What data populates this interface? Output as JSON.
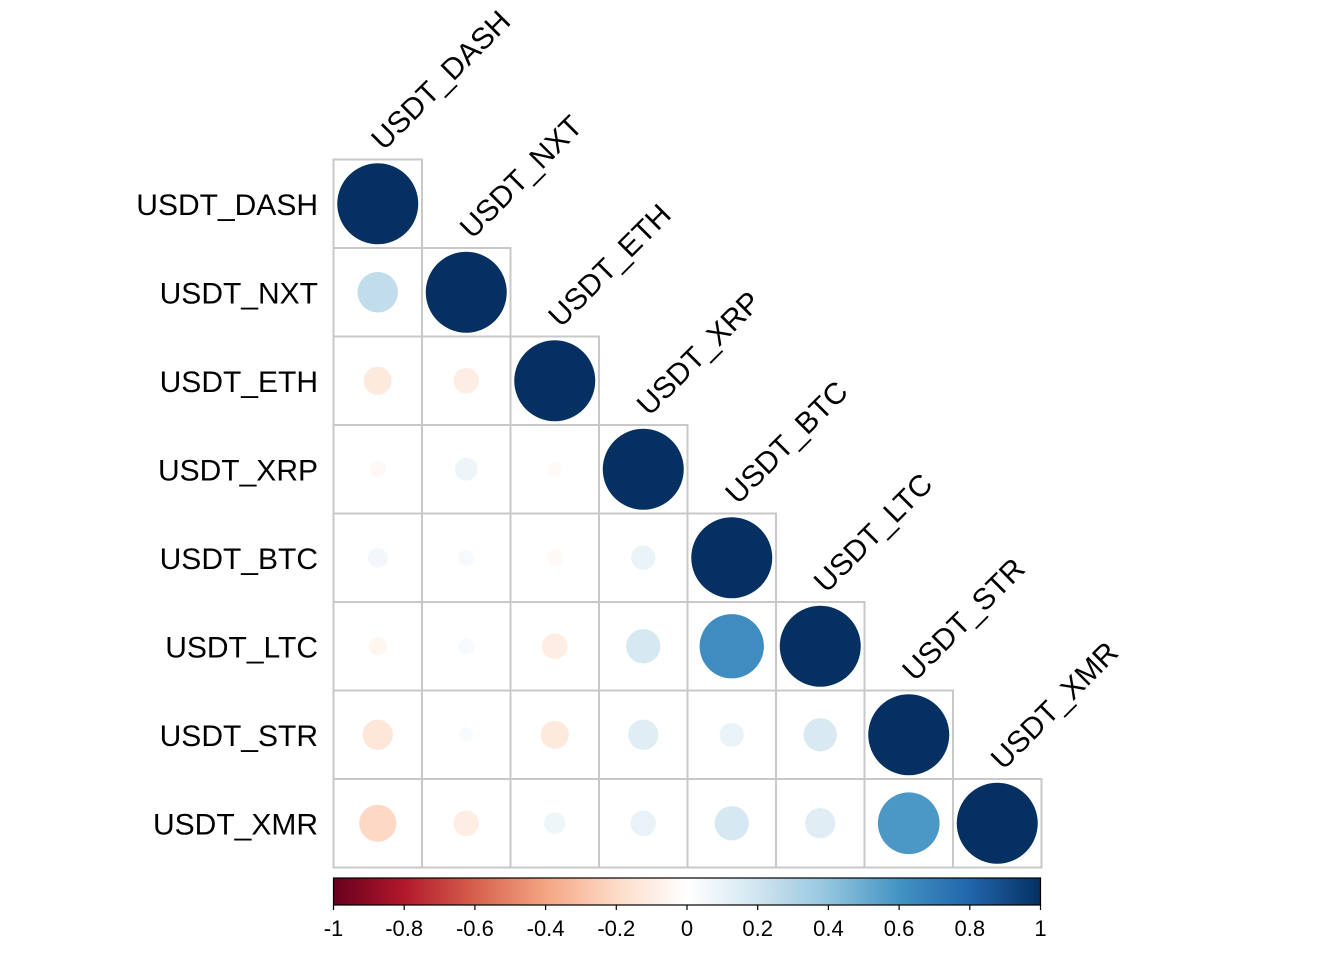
{
  "chart_data": {
    "type": "heatmap",
    "subtype": "correlation-matrix-circles-lower-triangle",
    "variables": [
      "USDT_DASH",
      "USDT_NXT",
      "USDT_ETH",
      "USDT_XRP",
      "USDT_BTC",
      "USDT_LTC",
      "USDT_STR",
      "USDT_XMR"
    ],
    "matrix": [
      [
        1.0,
        0.25,
        -0.12,
        -0.04,
        0.06,
        -0.05,
        -0.14,
        -0.21
      ],
      [
        0.25,
        1.0,
        -0.1,
        0.08,
        0.04,
        0.04,
        0.03,
        -0.1
      ],
      [
        -0.12,
        -0.1,
        1.0,
        -0.03,
        -0.04,
        -0.1,
        -0.12,
        0.07
      ],
      [
        -0.04,
        0.08,
        -0.03,
        1.0,
        0.09,
        0.18,
        0.14,
        0.1
      ],
      [
        0.06,
        0.04,
        -0.04,
        0.09,
        1.0,
        0.63,
        0.09,
        0.18
      ],
      [
        -0.05,
        0.04,
        -0.1,
        0.18,
        0.63,
        1.0,
        0.17,
        0.14
      ],
      [
        -0.14,
        0.03,
        -0.12,
        0.14,
        0.09,
        0.17,
        1.0,
        0.58
      ],
      [
        -0.21,
        -0.1,
        0.07,
        0.1,
        0.18,
        0.14,
        0.58,
        1.0
      ]
    ],
    "shape": "lower",
    "colorbar": {
      "min": -1,
      "max": 1,
      "tick_labels": [
        "-1",
        "-0.8",
        "-0.6",
        "-0.4",
        "-0.2",
        "0",
        "0.2",
        "0.4",
        "0.6",
        "0.8",
        "1"
      ],
      "palette": [
        "#67001F",
        "#B2182B",
        "#D6604D",
        "#F4A582",
        "#FDDBC7",
        "#FFFFFF",
        "#D1E5F0",
        "#92C5DE",
        "#4393C3",
        "#2166AC",
        "#053061"
      ]
    },
    "title": "",
    "grid": true,
    "cell_border_color": "#c8c8c8"
  }
}
